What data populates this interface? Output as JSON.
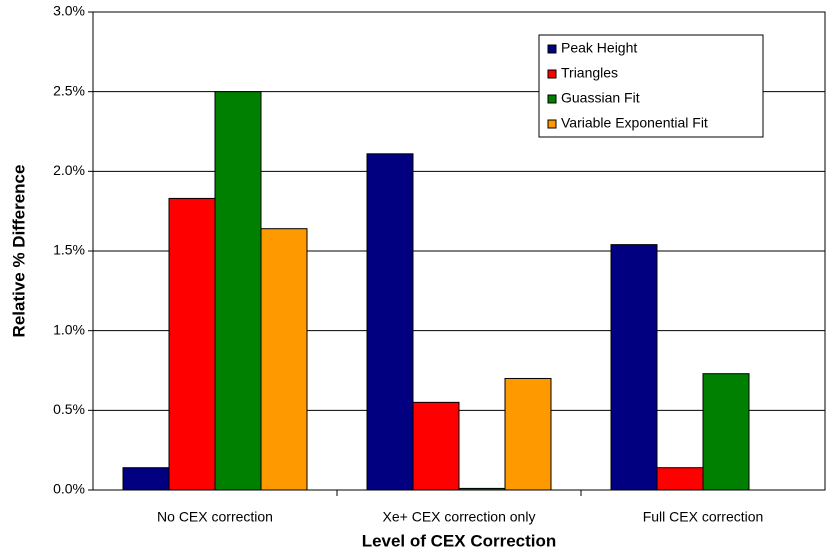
{
  "chart_data": {
    "type": "bar",
    "xlabel": "Level of CEX Correction",
    "ylabel": "Relative % Difference",
    "categories": [
      "No CEX correction",
      "Xe+ CEX correction only",
      "Full CEX correction"
    ],
    "series": [
      {
        "name": "Peak Height",
        "color": "#000080",
        "values": [
          0.14,
          2.11,
          1.54
        ]
      },
      {
        "name": "Triangles",
        "color": "#ff0000",
        "values": [
          1.83,
          0.55,
          0.14
        ]
      },
      {
        "name": "Guassian Fit",
        "color": "#008000",
        "values": [
          2.5,
          0.01,
          0.73
        ]
      },
      {
        "name": "Variable Exponential Fit",
        "color": "#ff9900",
        "values": [
          1.64,
          0.7,
          null
        ]
      }
    ],
    "ylim": [
      0,
      3
    ],
    "yticks": [
      {
        "value": 0,
        "label": "0.0%"
      },
      {
        "value": 0.5,
        "label": "0.5%"
      },
      {
        "value": 1,
        "label": "1.0%"
      },
      {
        "value": 1.5,
        "label": "1.5%"
      },
      {
        "value": 2,
        "label": "2.0%"
      },
      {
        "value": 2.5,
        "label": "2.5%"
      },
      {
        "value": 3,
        "label": "3.0%"
      }
    ],
    "grid": true,
    "legend": "upper-right"
  }
}
